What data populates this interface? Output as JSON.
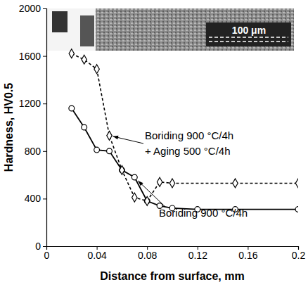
{
  "chart_data": {
    "type": "line",
    "x_label": "Distance from surface,  mm",
    "y_label": "Hardness,  HV0.5",
    "annotations": [
      "Boriding 900 °C/4h",
      "+ Aging 500 °C/4h",
      "Boriding 900 °C/4h",
      "100 μm"
    ],
    "series": [
      {
        "color": "#000000",
        "line_style": "solid",
        "marker": "circle",
        "x": [
          0.02,
          0.03,
          0.04,
          0.05,
          0.06,
          0.07,
          0.08,
          0.09,
          0.1,
          0.12,
          0.15,
          0.2
        ],
        "values": [
          1160,
          1000,
          810,
          800,
          640,
          580,
          380,
          340,
          320,
          310,
          310,
          310
        ]
      },
      {
        "color": "#000000",
        "line_style": "dashed",
        "marker": "diamond",
        "x": [
          0.02,
          0.03,
          0.04,
          0.05,
          0.06,
          0.07,
          0.08,
          0.09,
          0.1,
          0.15,
          0.2
        ],
        "values": [
          1620,
          1570,
          1490,
          930,
          640,
          410,
          380,
          540,
          530,
          530,
          530
        ]
      }
    ],
    "xlim": [
      0,
      0.2
    ],
    "xticks": [
      0,
      0.04,
      0.08,
      0.12,
      0.16,
      0.2
    ],
    "ylim": [
      0,
      2000
    ],
    "yticks": [
      0,
      400,
      800,
      1200,
      1600,
      2000
    ],
    "grid": false
  }
}
